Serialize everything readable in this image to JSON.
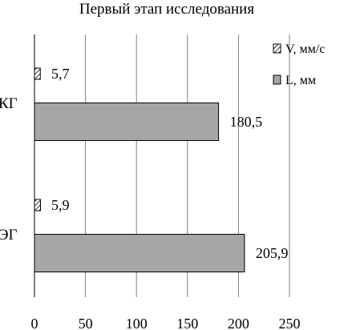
{
  "chart_data": {
    "type": "bar",
    "orientation": "horizontal",
    "title": "Первый этап исследования",
    "categories": [
      "КГ",
      "ЭГ"
    ],
    "series": [
      {
        "name": "V, мм/с",
        "values": [
          5.7,
          5.9
        ],
        "value_labels": [
          "5,7",
          "5,9"
        ],
        "fill": "hatched"
      },
      {
        "name": "L, мм",
        "values": [
          180.5,
          205.9
        ],
        "value_labels": [
          "180,5",
          "205,9"
        ],
        "fill": "#a6a6a6"
      }
    ],
    "xlim": [
      0,
      250
    ],
    "xticks": [
      0,
      50,
      100,
      150,
      200,
      250
    ],
    "xtick_labels": [
      "0",
      "50",
      "100",
      "150",
      "200",
      "250"
    ],
    "xlabel": "",
    "ylabel": "",
    "grid": "vertical",
    "legend": "top-right"
  },
  "colors": {
    "bar_fill": "#a6a6a6",
    "stroke": "#000000",
    "grid": "#7f7f7f"
  }
}
